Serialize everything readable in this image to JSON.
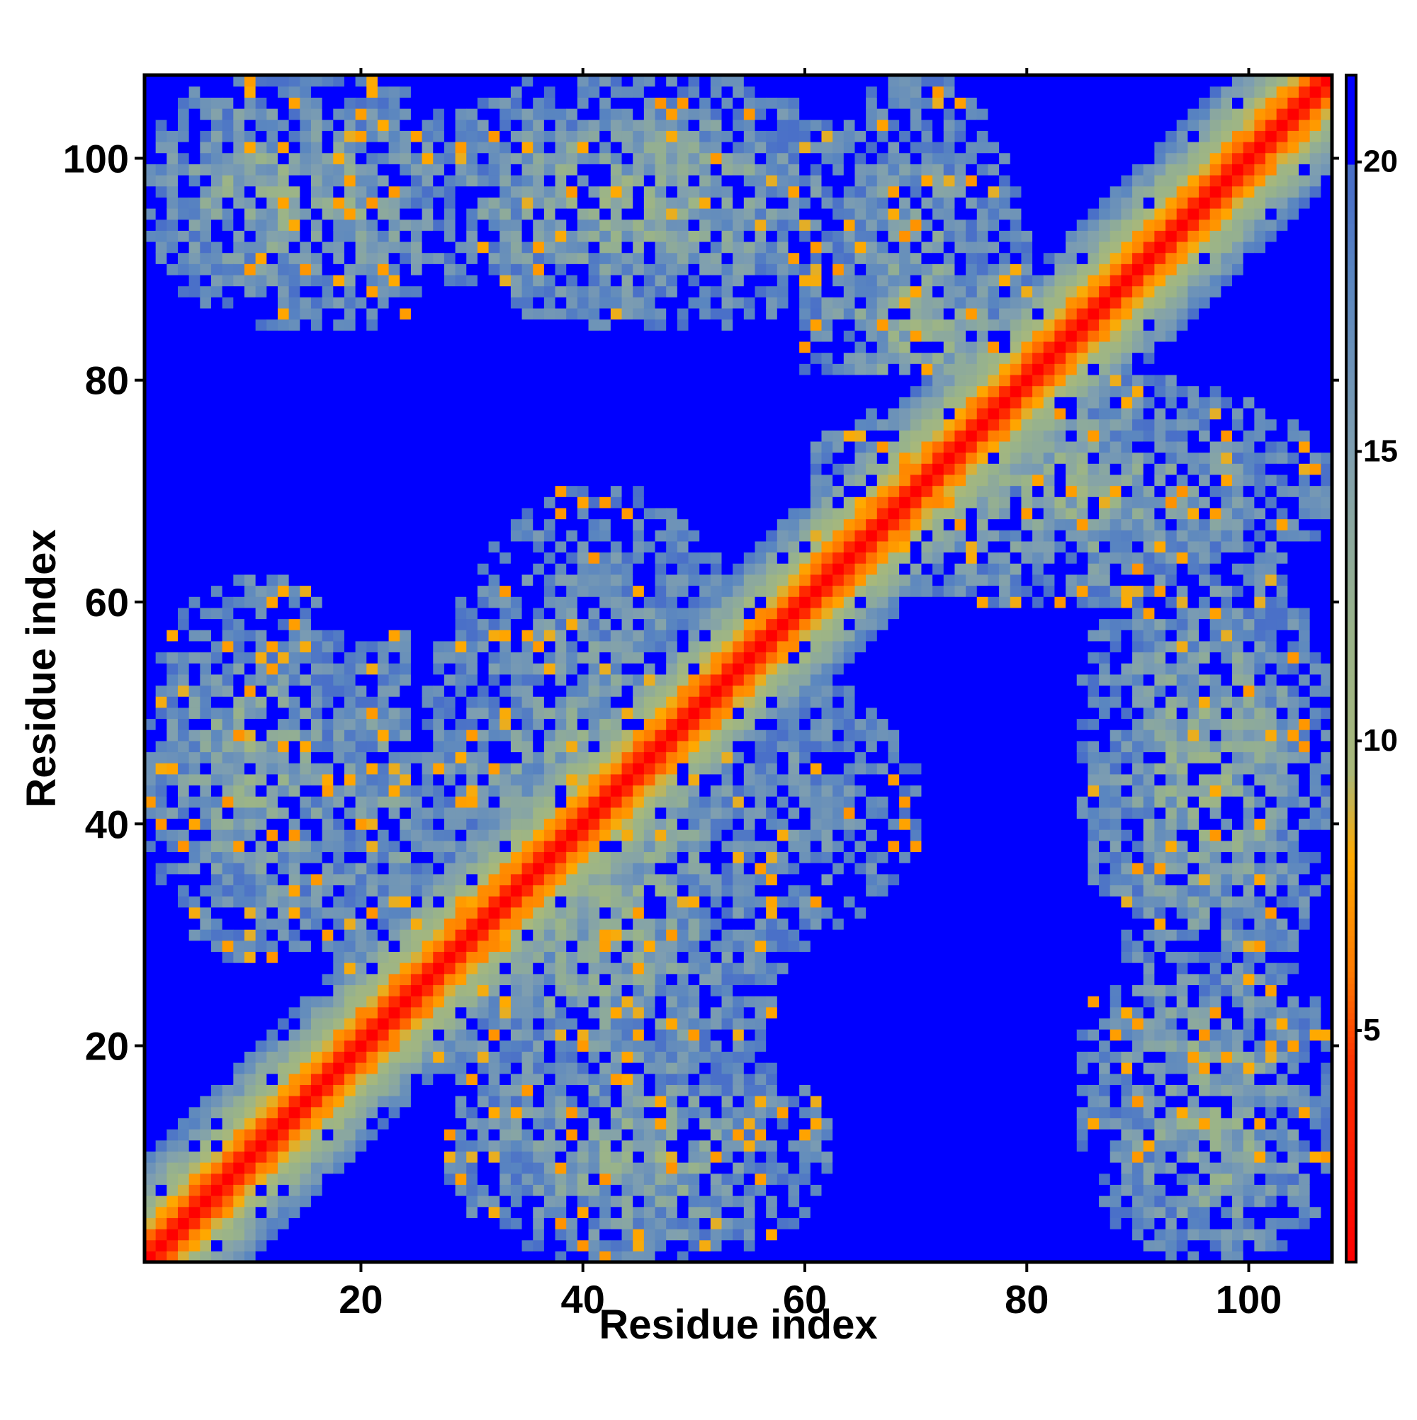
{
  "chart_data": {
    "type": "heatmap",
    "title": "",
    "xlabel": "Residue index",
    "ylabel": "Residue index",
    "n_residues": 107,
    "xlim": [
      0.5,
      107.5
    ],
    "ylim": [
      0.5,
      107.5
    ],
    "x_ticks": [
      20,
      40,
      60,
      80,
      100
    ],
    "y_ticks": [
      20,
      40,
      60,
      80,
      100
    ],
    "x_tick_labels": [
      "20",
      "40",
      "60",
      "80",
      "100"
    ],
    "y_tick_labels": [
      "20",
      "40",
      "60",
      "80",
      "100"
    ],
    "symmetric": true,
    "value_description": "pairwise residue distance",
    "colorbar": {
      "min": 1,
      "max": 21.5,
      "ticks": [
        5,
        10,
        15,
        20
      ],
      "tick_labels": [
        "5",
        "10",
        "15",
        "20"
      ],
      "scale": [
        {
          "value": 1,
          "color": "#ff0000"
        },
        {
          "value": 4.5,
          "color": "#ff3300"
        },
        {
          "value": 6,
          "color": "#ff7a00"
        },
        {
          "value": 8,
          "color": "#ffaa00"
        },
        {
          "value": 9.5,
          "color": "#a8b87a"
        },
        {
          "value": 12,
          "color": "#99b38a"
        },
        {
          "value": 15,
          "color": "#7f9fb0"
        },
        {
          "value": 18,
          "color": "#5a86c0"
        },
        {
          "value": 19.5,
          "color": "#4a70c8"
        }
      ],
      "cutoff_value": 20,
      "cutoff_color": "#0000ff"
    },
    "contact_regions": [
      {
        "label": "diagonal band",
        "i_range": [
          1,
          107
        ],
        "j_range": [
          1,
          107
        ]
      },
      {
        "label": "upper-left block",
        "i_range": [
          1,
          20
        ],
        "j_range": [
          88,
          107
        ]
      },
      {
        "label": "upper-middle block",
        "i_range": [
          25,
          60
        ],
        "j_range": [
          86,
          107
        ]
      },
      {
        "label": "left block",
        "i_range": [
          1,
          20
        ],
        "j_range": [
          28,
          62
        ]
      },
      {
        "label": "central block",
        "i_range": [
          25,
          58
        ],
        "j_range": [
          5,
          70
        ]
      },
      {
        "label": "lower-right block",
        "i_range": [
          85,
          107
        ],
        "j_range": [
          1,
          30
        ]
      },
      {
        "label": "right block",
        "i_range": [
          85,
          107
        ],
        "j_range": [
          30,
          65
        ]
      },
      {
        "label": "upper-right arm",
        "i_range": [
          60,
          107
        ],
        "j_range": [
          60,
          80
        ]
      }
    ]
  }
}
